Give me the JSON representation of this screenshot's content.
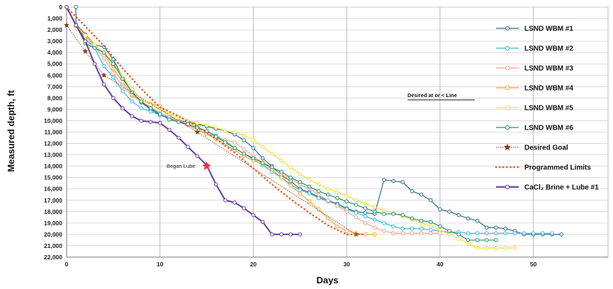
{
  "chart_data": {
    "type": "line",
    "xlabel": "Days",
    "ylabel": "Measured depth, ft",
    "xlim": [
      0,
      58
    ],
    "ylim": [
      0,
      22000
    ],
    "y_inverted": true,
    "grid": true,
    "legend_position": "right",
    "x_ticks": [
      "0",
      "10",
      "20",
      "30",
      "40",
      "50"
    ],
    "y_ticks": [
      "0",
      "1,000",
      "2,000",
      "3,000",
      "4,000",
      "5,000",
      "6,000",
      "7,000",
      "8,000",
      "9,000",
      "10,000",
      "11,000",
      "12,000",
      "13,000",
      "14,000",
      "15,000",
      "16,000",
      "17,000",
      "18,000",
      "19,000",
      "20,000",
      "21,000",
      "22,000"
    ],
    "annotations": [
      {
        "text": "Began Lube",
        "x": 15,
        "y": 14000
      },
      {
        "text": "Desired at or < Line",
        "x": 40,
        "y": 7700
      }
    ],
    "series": [
      {
        "name": "LSND WBM #1",
        "color": "#2e6e8e",
        "style": "solid",
        "marker": "circle",
        "x": [
          1,
          1,
          2,
          3,
          4,
          5,
          6,
          7,
          8,
          9,
          10,
          11,
          12,
          13,
          14,
          15,
          16,
          17,
          18,
          19,
          20,
          21,
          22,
          23,
          24,
          25,
          26,
          27,
          28,
          29,
          30,
          31,
          32,
          33,
          34,
          35,
          36,
          37,
          38,
          39,
          40,
          41,
          42,
          43,
          44,
          45,
          46,
          47,
          48,
          49,
          50,
          51,
          52,
          53
        ],
        "y": [
          0,
          1500,
          2400,
          3300,
          3500,
          4600,
          6200,
          7500,
          8400,
          9000,
          9500,
          9700,
          10000,
          10100,
          10300,
          10500,
          10700,
          10900,
          11200,
          11700,
          12400,
          13300,
          14000,
          14800,
          15300,
          16000,
          16300,
          16700,
          17000,
          17300,
          17700,
          18000,
          18100,
          18200,
          15200,
          15300,
          15400,
          16200,
          16500,
          17000,
          17800,
          18000,
          18300,
          18600,
          18800,
          19400,
          19400,
          19500,
          19700,
          20000,
          20000,
          20000,
          20000,
          20000
        ]
      },
      {
        "name": "LSND WBM #2",
        "color": "#38b6d8",
        "style": "solid",
        "marker": "circle",
        "x": [
          0,
          1,
          2,
          3,
          4,
          5,
          6,
          7,
          8,
          9,
          10,
          11,
          12,
          13,
          14,
          15,
          16,
          17,
          18,
          19,
          20,
          21,
          22,
          23,
          24,
          25,
          26,
          27,
          28,
          29,
          30,
          31,
          32,
          33,
          34,
          35,
          36,
          37,
          38,
          39,
          40,
          41,
          42,
          43,
          44,
          45,
          46,
          47,
          48,
          49,
          50,
          51,
          52
        ],
        "y": [
          0,
          1500,
          2800,
          3600,
          5200,
          6200,
          7400,
          8300,
          8900,
          9200,
          9500,
          9800,
          10100,
          10400,
          10700,
          10900,
          11300,
          11800,
          12400,
          12900,
          13400,
          13900,
          14500,
          15000,
          15600,
          16100,
          16400,
          16800,
          17100,
          17400,
          17800,
          18100,
          18400,
          18700,
          19000,
          19300,
          19500,
          19500,
          19500,
          19600,
          19700,
          19800,
          19800,
          19900,
          19900,
          19900,
          19900,
          19900,
          19900,
          19900,
          19900,
          19900,
          19900
        ]
      },
      {
        "name": "LSND WBM #3",
        "color": "#f2a28e",
        "style": "solid",
        "marker": "circle",
        "x": [
          0,
          1,
          2,
          3,
          4,
          5,
          6,
          7,
          8,
          9,
          10,
          11,
          12,
          13,
          14,
          15,
          16,
          17,
          18,
          19,
          20,
          21,
          22,
          23,
          24,
          25,
          26,
          27,
          28,
          29,
          30,
          31,
          32,
          33,
          34,
          35,
          36,
          37,
          38,
          39,
          40
        ],
        "y": [
          0,
          1600,
          2500,
          3500,
          4500,
          5800,
          7000,
          7800,
          8300,
          8800,
          9300,
          9700,
          10000,
          10400,
          10800,
          11100,
          11500,
          11700,
          11900,
          12500,
          13100,
          13700,
          14200,
          14700,
          15100,
          15600,
          16000,
          16500,
          17000,
          17500,
          18000,
          18500,
          19000,
          19400,
          19700,
          19900,
          19900,
          19900,
          19900,
          19900,
          19900
        ]
      },
      {
        "name": "LSND WBM #4",
        "color": "#f5a623",
        "style": "solid",
        "marker": "circle",
        "x": [
          0,
          1,
          2,
          3,
          4,
          5,
          6,
          7,
          8,
          9,
          10,
          11,
          12,
          13,
          14,
          15,
          16,
          17,
          18,
          19,
          20,
          21,
          22,
          23,
          24,
          25,
          26,
          27,
          28,
          29,
          30,
          31,
          32,
          33
        ],
        "y": [
          0,
          1700,
          2600,
          3300,
          4100,
          5400,
          6600,
          7700,
          8200,
          8500,
          8700,
          9600,
          10000,
          10300,
          10800,
          11200,
          11600,
          12100,
          12600,
          13100,
          13500,
          13800,
          14300,
          15000,
          15700,
          16400,
          17100,
          17800,
          18600,
          19300,
          19700,
          19900,
          20000,
          20000
        ]
      },
      {
        "name": "LSND WBM #5",
        "color": "#f2dc36",
        "style": "solid",
        "marker": "circle",
        "x": [
          0,
          1,
          2,
          3,
          4,
          5,
          6,
          7,
          8,
          9,
          10,
          11,
          12,
          13,
          14,
          15,
          16,
          17,
          18,
          19,
          20,
          21,
          22,
          23,
          24,
          25,
          26,
          27,
          28,
          29,
          30,
          31,
          32,
          33,
          34,
          35,
          36,
          37,
          38,
          39,
          40,
          41,
          42,
          43,
          44,
          45,
          46,
          47,
          48
        ],
        "y": [
          0,
          1600,
          2500,
          3300,
          4100,
          5000,
          6100,
          7200,
          8100,
          8600,
          9000,
          9400,
          9700,
          10000,
          10200,
          10400,
          10600,
          10900,
          11000,
          11300,
          11700,
          12300,
          12900,
          13500,
          14100,
          14700,
          15200,
          15600,
          16000,
          16300,
          16600,
          17000,
          17300,
          17600,
          17900,
          18100,
          18400,
          18700,
          19000,
          19300,
          19600,
          20000,
          20400,
          20800,
          21200,
          21200,
          21200,
          21200,
          21200
        ]
      },
      {
        "name": "LSND WBM #6",
        "color": "#23906a",
        "style": "solid",
        "marker": "circle",
        "x": [
          0,
          1,
          2,
          3,
          4,
          5,
          6,
          7,
          8,
          9,
          10,
          11,
          12,
          13,
          14,
          15,
          16,
          17,
          18,
          19,
          20,
          21,
          22,
          23,
          24,
          25,
          26,
          27,
          28,
          29,
          30,
          31,
          32,
          33,
          34,
          35,
          36,
          37,
          38,
          39,
          40,
          41,
          42,
          43,
          44,
          45,
          46
        ],
        "y": [
          0,
          1600,
          3200,
          3600,
          4000,
          5000,
          6300,
          7500,
          8300,
          8900,
          9400,
          9900,
          10100,
          10300,
          10600,
          10900,
          11400,
          11900,
          12400,
          12900,
          13300,
          13700,
          14100,
          14500,
          15000,
          15400,
          15800,
          16200,
          16500,
          16800,
          17100,
          17400,
          17700,
          18000,
          18200,
          18200,
          18300,
          18600,
          18800,
          18900,
          19300,
          19700,
          20000,
          20500,
          20500,
          20500,
          20500
        ]
      },
      {
        "name": "Desired Goal",
        "color": "#8a3a22",
        "style": "dotted",
        "marker": "star",
        "x": [
          0,
          2,
          4,
          14,
          31
        ],
        "y": [
          1600,
          3900,
          6000,
          11000,
          20000
        ]
      },
      {
        "name": "Programmed Limits",
        "color": "#e85c1f",
        "style": "dotted-thick",
        "marker": "none",
        "x": [
          0,
          2,
          4,
          6,
          8,
          10,
          12,
          14,
          16,
          18,
          20,
          22,
          24,
          26,
          28,
          30,
          32
        ],
        "y": [
          0,
          1700,
          3400,
          5400,
          7200,
          8800,
          9600,
          10500,
          11600,
          12800,
          14200,
          15600,
          16900,
          18100,
          19200,
          20000,
          20000
        ]
      },
      {
        "name": "CaCl₂ Brine + Lube #1",
        "color": "#6b3aa3",
        "style": "solid-thick",
        "marker": "circle",
        "x": [
          0,
          1,
          2,
          3,
          4,
          5,
          6,
          7,
          8,
          9,
          10,
          11,
          12,
          13,
          14,
          15,
          16,
          17,
          18,
          19,
          20,
          21,
          22,
          23,
          24,
          25
        ],
        "y": [
          0,
          1600,
          3000,
          5000,
          6800,
          8000,
          8900,
          9600,
          10000,
          10100,
          10200,
          10800,
          11500,
          12300,
          13100,
          13900,
          15600,
          17000,
          17200,
          17700,
          18300,
          18900,
          20000,
          20000,
          20000,
          20000
        ]
      }
    ]
  }
}
